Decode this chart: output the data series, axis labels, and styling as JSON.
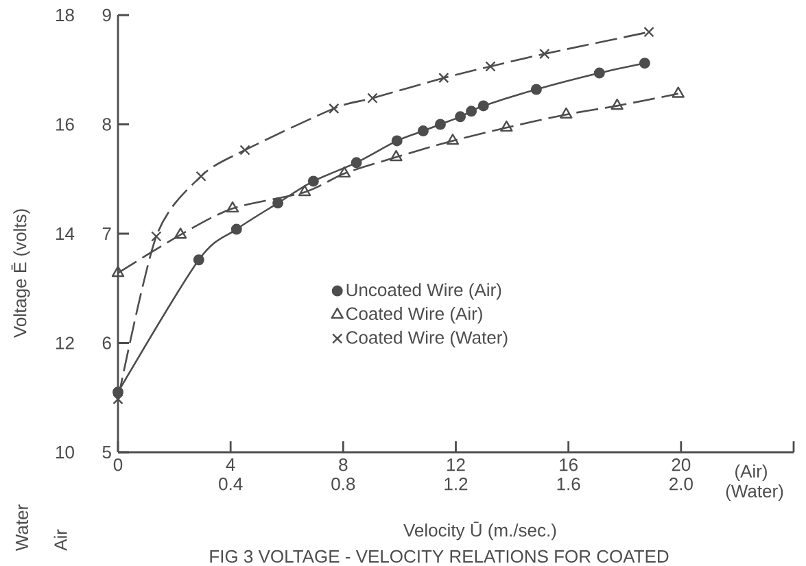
{
  "chart_data": {
    "type": "line",
    "xlabel": "Velocity Ū (m./sec.)",
    "ylabel": "Voltage Ē (volts)",
    "xlim": [
      0,
      24
    ],
    "xticks": [
      0,
      4,
      8,
      12,
      16,
      20,
      {
        "value": 24,
        "label": null
      }
    ],
    "ylim": [
      10,
      18
    ],
    "yticks": [
      10,
      12,
      14,
      16,
      18
    ],
    "x2lim": [
      0,
      2.4
    ],
    "x2ticks": [
      0.4,
      0.8,
      1.2,
      1.6,
      {
        "value": 2.0,
        "label": "2.0"
      }
    ],
    "y2lim": [
      5,
      9
    ],
    "y2ticks": [
      5,
      6,
      7,
      8,
      9
    ],
    "legend": "center",
    "grid": false,
    "annotations": [
      "(Air)",
      "(Water)",
      "Water",
      "Air",
      "FIG 3  VOLTAGE - VELOCITY  RELATIONS  FOR  COATED"
    ],
    "series": [
      {
        "name": "Uncoated Wire (Air)",
        "color": "#4d4d4d",
        "marker": "circle",
        "line_style": "solid",
        "axis": "y2",
        "x": [
          0,
          2.87,
          4.21,
          5.68,
          6.94,
          8.47,
          9.91,
          10.84,
          11.45,
          12.16,
          12.55,
          12.98,
          14.86,
          17.1,
          18.71
        ],
        "values": [
          5.55,
          6.76,
          7.04,
          7.28,
          7.48,
          7.65,
          7.85,
          7.94,
          8.0,
          8.07,
          8.12,
          8.17,
          8.32,
          8.47,
          8.56
        ]
      },
      {
        "name": "Coated Wire (Air)",
        "color": "#4d4d4d",
        "marker": "triangle",
        "line_style": "dashed",
        "axis": "y2",
        "x": [
          0,
          2.22,
          4.07,
          6.63,
          8.04,
          9.88,
          11.89,
          13.8,
          15.92,
          17.73,
          19.9
        ],
        "values": [
          6.64,
          6.99,
          7.23,
          7.38,
          7.55,
          7.7,
          7.85,
          7.97,
          8.09,
          8.17,
          8.28
        ]
      },
      {
        "name": "Coated Wire (Water)",
        "color": "#4d4d4d",
        "marker": "cross",
        "line_style": "dashed",
        "axis": "x2",
        "x": [
          0,
          0.136,
          0.295,
          0.451,
          0.767,
          0.904,
          1.157,
          1.323,
          1.515,
          1.886
        ],
        "values": [
          10.97,
          13.95,
          15.05,
          15.53,
          16.29,
          16.48,
          16.85,
          17.06,
          17.29,
          17.69
        ]
      }
    ]
  }
}
